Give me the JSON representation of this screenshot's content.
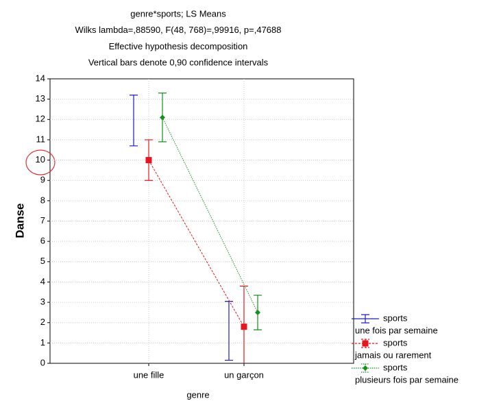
{
  "chart_data": {
    "type": "errorbar",
    "title": [
      "genre*sports; LS Means",
      "Wilks lambda=,88590, F(48, 768)=,99916, p=,47688",
      "Effective hypothesis decomposition",
      "Vertical bars denote 0,90 confidence intervals"
    ],
    "xlabel": "genre",
    "ylabel": "Danse",
    "categories": [
      "une fille",
      "un garçon"
    ],
    "ylim": [
      0,
      14
    ],
    "yticks": [
      0,
      1,
      2,
      3,
      4,
      5,
      6,
      7,
      8,
      9,
      10,
      11,
      12,
      13,
      14
    ],
    "grid": true,
    "legend": "lower right",
    "series": [
      {
        "name": [
          "sports",
          "une fois par semaine"
        ],
        "color": "#1a1acc",
        "marker": "none",
        "line": "none",
        "values": [
          11.95,
          1.6
        ],
        "errors": [
          1.25,
          1.45
        ]
      },
      {
        "name": [
          "sports",
          "jamais ou rarement"
        ],
        "color": "#e8141e",
        "marker": "square",
        "line": "dashed",
        "values": [
          10.0,
          1.8
        ],
        "errors": [
          1.0,
          2.0
        ]
      },
      {
        "name": [
          "sports",
          "plusieurs fois par semaine"
        ],
        "color": "#15901e",
        "marker": "diamond",
        "line": "dotted",
        "values": [
          12.1,
          2.5
        ],
        "errors": [
          1.2,
          0.85
        ]
      }
    ]
  }
}
